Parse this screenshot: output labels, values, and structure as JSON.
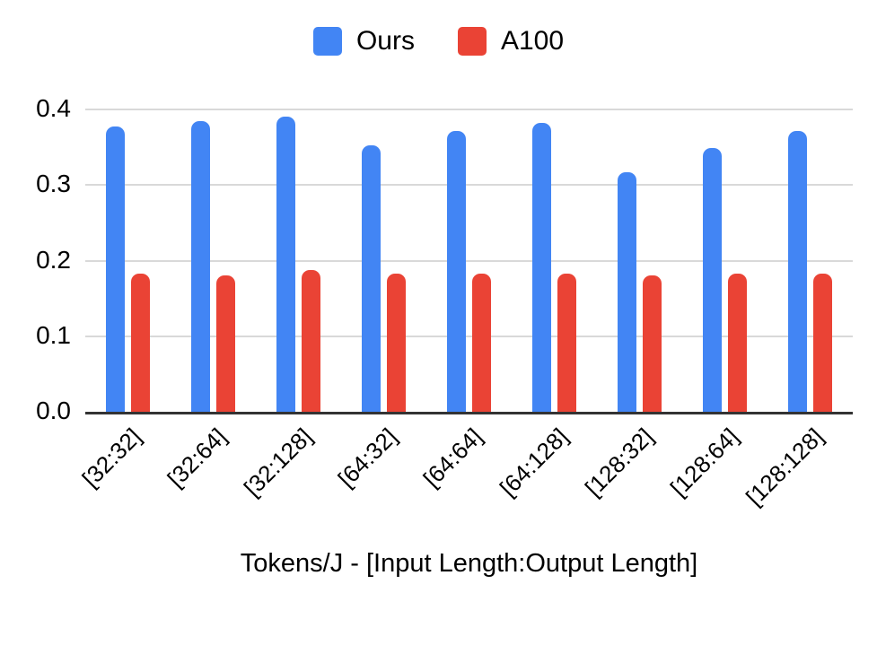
{
  "chart_data": {
    "type": "bar",
    "title": "",
    "xlabel": "Tokens/J - [Input Length:Output Length]",
    "ylabel": "",
    "categories": [
      "[32:32]",
      "[32:64]",
      "[32:128]",
      "[64:32]",
      "[64:64]",
      "[64:128]",
      "[128:32]",
      "[128:64]",
      "[128:128]"
    ],
    "series": [
      {
        "name": "Ours",
        "color": "#4285F4",
        "values": [
          0.378,
          0.385,
          0.39,
          0.352,
          0.371,
          0.382,
          0.317,
          0.349,
          0.371
        ]
      },
      {
        "name": "A100",
        "color": "#EA4335",
        "values": [
          0.183,
          0.18,
          0.187,
          0.183,
          0.183,
          0.183,
          0.18,
          0.183,
          0.183
        ]
      }
    ],
    "ylim": [
      0,
      0.4
    ],
    "yticks": [
      0,
      0.1,
      0.2,
      0.3,
      0.4
    ],
    "ytick_labels": [
      "0.0",
      "0.1",
      "0.2",
      "0.3",
      "0.4"
    ],
    "grid": true,
    "legend_position": "top"
  },
  "colors": {
    "grid": "#d9d9d9",
    "axis": "#333333",
    "text": "#000000",
    "background": "#ffffff"
  }
}
